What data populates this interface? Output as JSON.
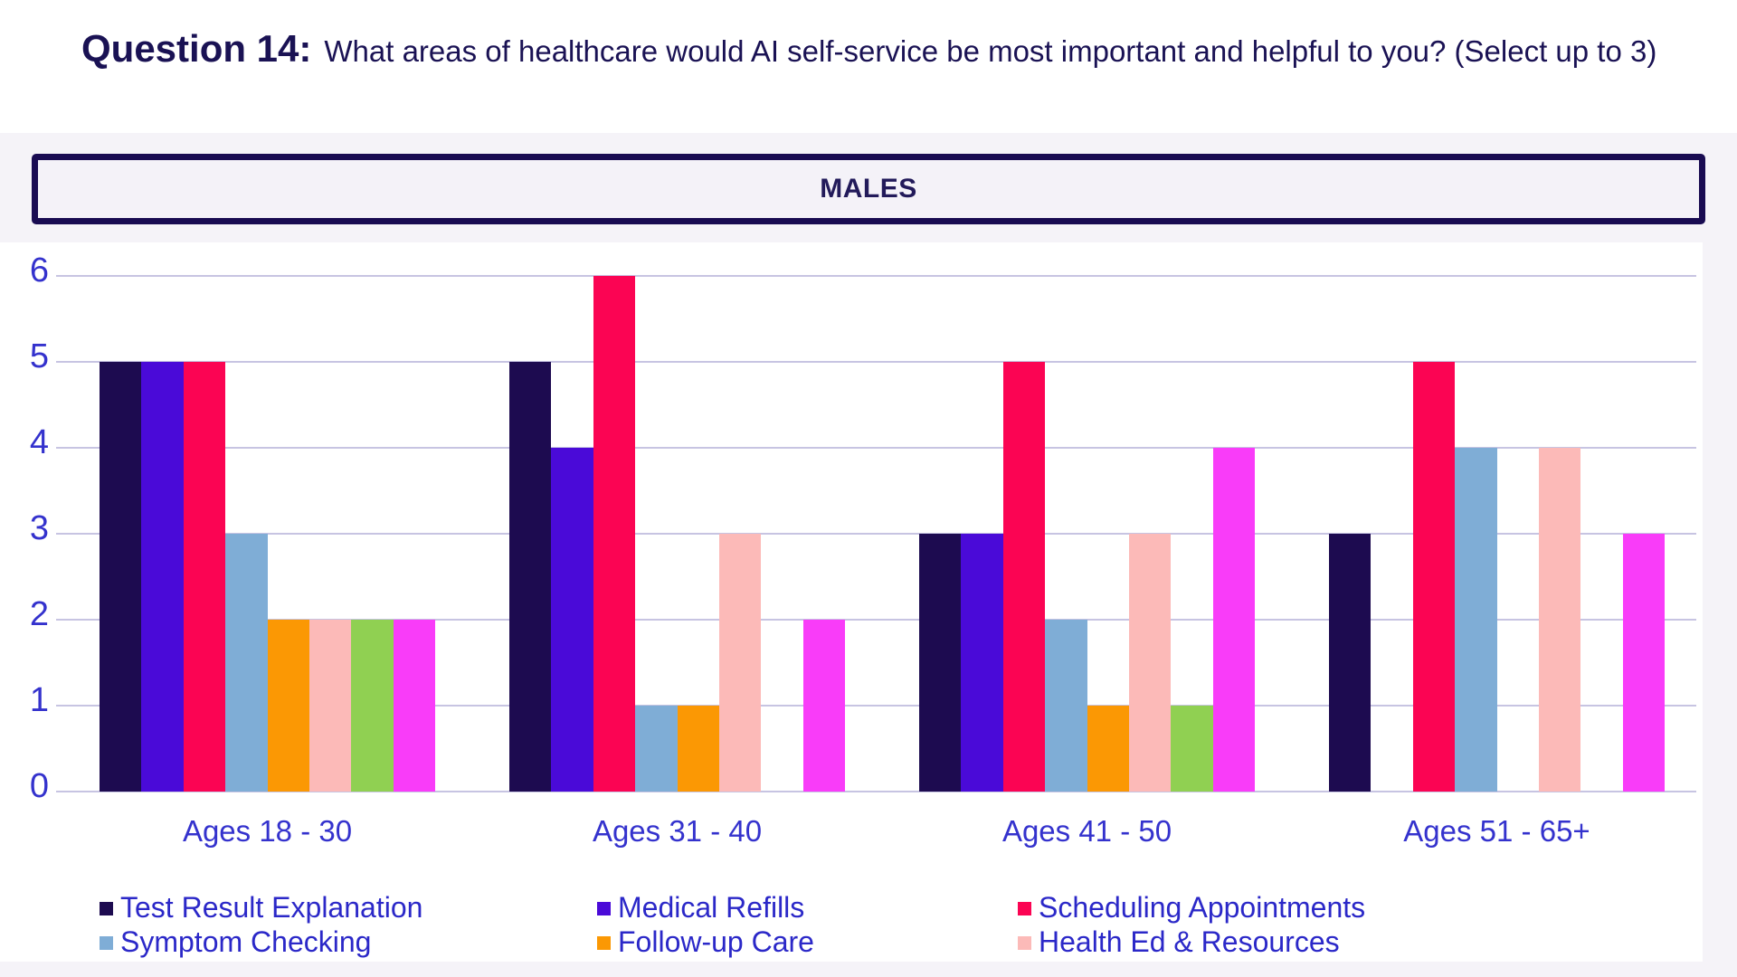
{
  "header": {
    "title_bold": "Question 14:",
    "title_rest": "What areas of healthcare would AI self-service be most important and helpful to you? (Select up to 3)"
  },
  "panel": {
    "label": "MALES"
  },
  "colors": {
    "page_bg": "#ffffff",
    "panel_bg": "#f5f3f8",
    "card_bg": "#ffffff",
    "males_border": "#190b52",
    "males_bg": "#f4f2f8",
    "males_text": "#221a5a",
    "title_text": "#1a1254",
    "axis_text": "#3432cd",
    "legend_text": "#2b28c8",
    "gridline": "#c7c4e2"
  },
  "chart_data": {
    "type": "bar",
    "title": "MALES",
    "subtitle": "",
    "xlabel": "",
    "ylabel": "",
    "categories": [
      "Ages 18 - 30",
      "Ages 31 - 40",
      "Ages 41 - 50",
      "Ages 51 - 65+"
    ],
    "series": [
      {
        "name": "Test Result Explanation",
        "color": "#1d0b50",
        "values": [
          5,
          5,
          3,
          3
        ]
      },
      {
        "name": "Medical Refills",
        "color": "#4a0ad8",
        "values": [
          5,
          4,
          3,
          0
        ]
      },
      {
        "name": "Scheduling Appointments",
        "color": "#fb0453",
        "values": [
          5,
          6,
          5,
          5
        ]
      },
      {
        "name": "Symptom Checking",
        "color": "#7fadd6",
        "values": [
          3,
          1,
          2,
          4
        ]
      },
      {
        "name": "Follow-up Care",
        "color": "#fb9804",
        "values": [
          2,
          1,
          1,
          0
        ]
      },
      {
        "name": "Health Ed & Resources",
        "color": "#fcbab8",
        "values": [
          2,
          3,
          3,
          4
        ]
      },
      {
        "name": "",
        "color": "#90d052",
        "values": [
          2,
          0,
          1,
          0
        ]
      },
      {
        "name": "",
        "color": "#f93cf9",
        "values": [
          2,
          2,
          4,
          3
        ]
      }
    ],
    "ylim": [
      0,
      6
    ],
    "yticks": [
      0,
      1,
      2,
      3,
      4,
      5,
      6
    ],
    "grid": true,
    "legend_position": "bottom"
  },
  "legend": {
    "items": [
      {
        "label": "Test Result Explanation",
        "color": "#1d0b50"
      },
      {
        "label": "Medical Refills",
        "color": "#4a0ad8"
      },
      {
        "label": "Scheduling Appointments",
        "color": "#fb0453"
      },
      {
        "label": "Symptom Checking",
        "color": "#7fadd6"
      },
      {
        "label": "Follow-up Care",
        "color": "#fb9804"
      },
      {
        "label": "Health Ed & Resources",
        "color": "#fcbab8"
      }
    ]
  }
}
